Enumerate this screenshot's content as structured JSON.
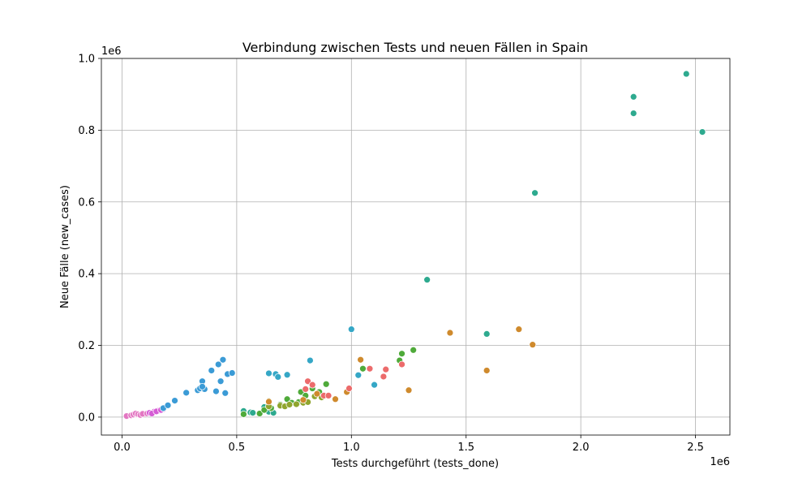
{
  "chart_data": {
    "type": "scatter",
    "title": "Verbindung zwischen Tests und neuen Fällen in Spain",
    "xlabel": "Tests durchgeführt (tests_done)",
    "ylabel": "Neue Fälle (new_cases)",
    "x_offset_label": "1e6",
    "y_offset_label": "1e6",
    "xlim": [
      -0.09,
      2.65
    ],
    "ylim": [
      -0.05,
      1.0
    ],
    "xticks": [
      0.0,
      0.5,
      1.0,
      1.5,
      2.0,
      2.5
    ],
    "xtick_labels": [
      "0.0",
      "0.5",
      "1.0",
      "1.5",
      "2.0",
      "2.5"
    ],
    "yticks": [
      0.0,
      0.2,
      0.4,
      0.6,
      0.8,
      1.0
    ],
    "ytick_labels": [
      "0.0",
      "0.2",
      "0.4",
      "0.6",
      "0.8",
      "1.0"
    ],
    "grid": true,
    "series": [
      {
        "color": "#e377c2",
        "points": [
          [
            0.02,
            0.003
          ],
          [
            0.04,
            0.005
          ],
          [
            0.05,
            0.007
          ],
          [
            0.06,
            0.01
          ],
          [
            0.07,
            0.008
          ],
          [
            0.08,
            0.006
          ],
          [
            0.09,
            0.009
          ],
          [
            0.11,
            0.01
          ]
        ]
      },
      {
        "color": "#d55cd5",
        "points": [
          [
            0.12,
            0.012
          ],
          [
            0.14,
            0.015
          ],
          [
            0.16,
            0.018
          ],
          [
            0.18,
            0.022
          ],
          [
            0.13,
            0.01
          ],
          [
            0.15,
            0.016
          ],
          [
            0.17,
            0.02
          ]
        ]
      },
      {
        "color": "#3b9bd6",
        "points": [
          [
            0.18,
            0.025
          ],
          [
            0.2,
            0.033
          ],
          [
            0.23,
            0.046
          ],
          [
            0.28,
            0.068
          ],
          [
            0.33,
            0.075
          ],
          [
            0.34,
            0.08
          ],
          [
            0.35,
            0.1
          ],
          [
            0.36,
            0.078
          ],
          [
            0.39,
            0.13
          ],
          [
            0.41,
            0.072
          ],
          [
            0.42,
            0.147
          ],
          [
            0.44,
            0.16
          ],
          [
            0.43,
            0.1
          ],
          [
            0.45,
            0.067
          ],
          [
            0.46,
            0.12
          ],
          [
            0.48,
            0.123
          ],
          [
            0.35,
            0.085
          ]
        ]
      },
      {
        "color": "#35a7c6",
        "points": [
          [
            0.64,
            0.122
          ],
          [
            0.67,
            0.12
          ],
          [
            0.68,
            0.112
          ],
          [
            0.72,
            0.118
          ],
          [
            0.82,
            0.158
          ],
          [
            1.0,
            0.245
          ],
          [
            1.03,
            0.117
          ],
          [
            1.1,
            0.09
          ]
        ]
      },
      {
        "color": "#2eaa8f",
        "points": [
          [
            0.53,
            0.017
          ],
          [
            0.56,
            0.013
          ],
          [
            0.57,
            0.012
          ],
          [
            0.62,
            0.028
          ],
          [
            0.63,
            0.02
          ],
          [
            0.64,
            0.015
          ],
          [
            0.66,
            0.012
          ],
          [
            1.33,
            0.383
          ],
          [
            1.59,
            0.232
          ],
          [
            1.8,
            0.625
          ],
          [
            2.23,
            0.847
          ],
          [
            2.23,
            0.893
          ],
          [
            2.46,
            0.957
          ],
          [
            2.53,
            0.795
          ]
        ]
      },
      {
        "color": "#4faa3a",
        "points": [
          [
            0.53,
            0.008
          ],
          [
            0.6,
            0.01
          ],
          [
            0.62,
            0.02
          ],
          [
            0.65,
            0.025
          ],
          [
            0.69,
            0.035
          ],
          [
            0.72,
            0.05
          ],
          [
            0.74,
            0.04
          ],
          [
            0.77,
            0.042
          ],
          [
            0.78,
            0.07
          ],
          [
            0.8,
            0.06
          ],
          [
            0.83,
            0.08
          ],
          [
            0.86,
            0.07
          ],
          [
            0.89,
            0.092
          ],
          [
            1.05,
            0.135
          ],
          [
            1.21,
            0.158
          ],
          [
            1.22,
            0.177
          ],
          [
            1.27,
            0.187
          ]
        ]
      },
      {
        "color": "#8fa52e",
        "points": [
          [
            0.64,
            0.03
          ],
          [
            0.69,
            0.032
          ],
          [
            0.71,
            0.03
          ],
          [
            0.73,
            0.035
          ],
          [
            0.76,
            0.036
          ],
          [
            0.79,
            0.04
          ],
          [
            0.81,
            0.042
          ],
          [
            0.84,
            0.058
          ],
          [
            0.87,
            0.055
          ],
          [
            0.64,
            0.045
          ]
        ]
      },
      {
        "color": "#cf8a2d",
        "points": [
          [
            0.64,
            0.043
          ],
          [
            0.79,
            0.048
          ],
          [
            0.85,
            0.065
          ],
          [
            0.93,
            0.05
          ],
          [
            0.98,
            0.07
          ],
          [
            1.04,
            0.16
          ],
          [
            1.25,
            0.075
          ],
          [
            1.43,
            0.235
          ],
          [
            1.59,
            0.13
          ],
          [
            1.73,
            0.245
          ],
          [
            1.79,
            0.202
          ]
        ]
      },
      {
        "color": "#ec6b6b",
        "points": [
          [
            0.8,
            0.078
          ],
          [
            0.81,
            0.1
          ],
          [
            0.83,
            0.09
          ],
          [
            0.88,
            0.06
          ],
          [
            0.9,
            0.06
          ],
          [
            0.99,
            0.08
          ],
          [
            1.08,
            0.135
          ],
          [
            1.14,
            0.113
          ],
          [
            1.15,
            0.133
          ],
          [
            1.22,
            0.147
          ]
        ]
      }
    ]
  }
}
